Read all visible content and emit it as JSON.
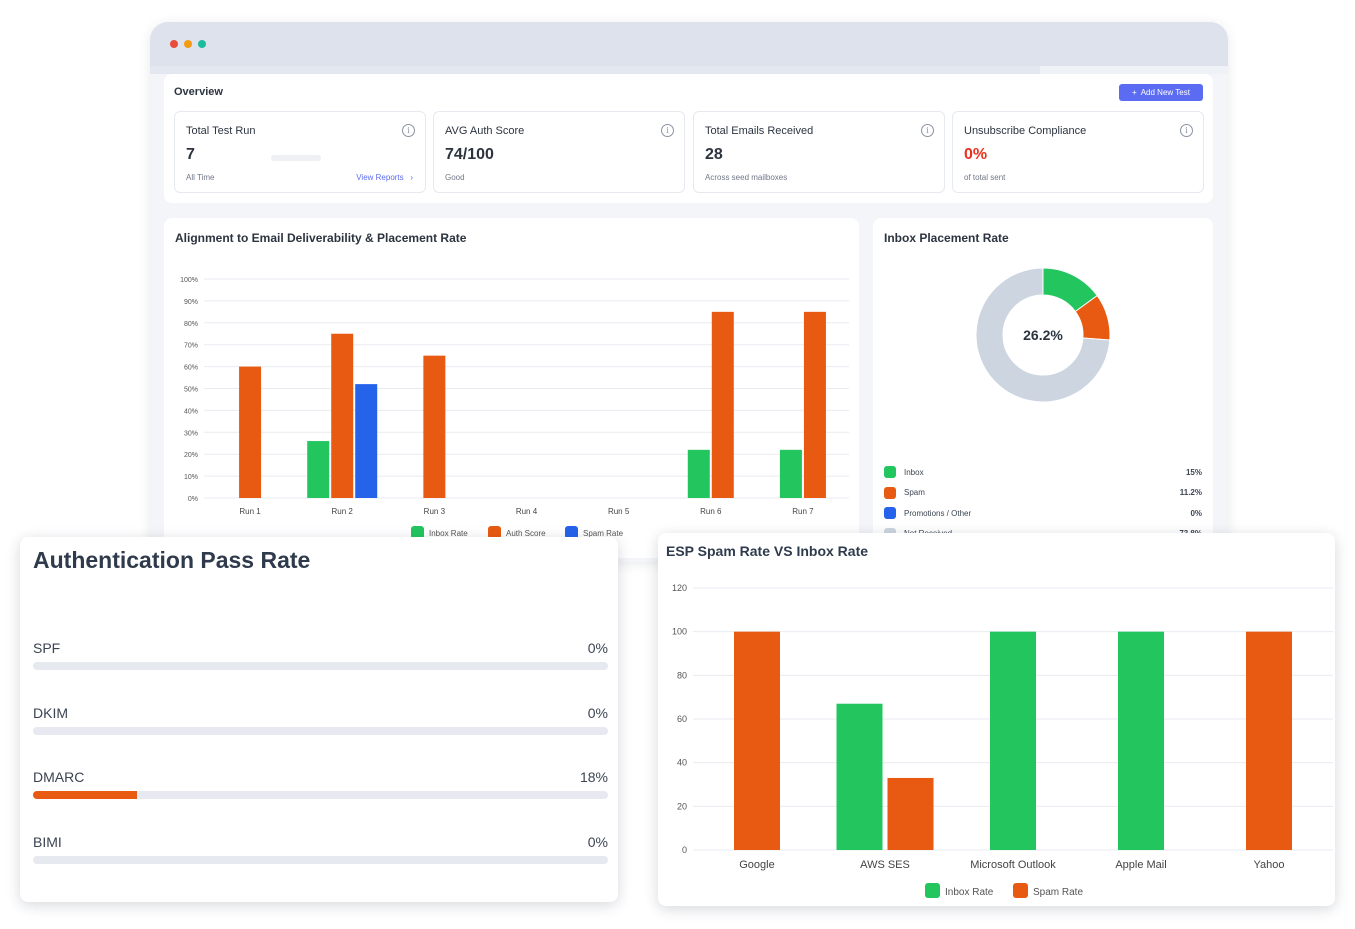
{
  "window": {
    "dot_colors": [
      "#e74c3c",
      "#f39c12",
      "#1abc9c"
    ]
  },
  "overview": {
    "title": "Overview",
    "add_button_label": "Add New Test",
    "stats": [
      {
        "label": "Total Test Run",
        "value": "7",
        "sub": "All Time",
        "link": "View Reports",
        "value_color": "#2c3440"
      },
      {
        "label": "AVG Auth Score",
        "value": "74/100",
        "sub": "Good",
        "value_color": "#2c3440"
      },
      {
        "label": "Total Emails Received",
        "value": "28",
        "sub": "Across seed mailboxes",
        "value_color": "#2c3440"
      },
      {
        "label": "Unsubscribe Compliance",
        "value": "0%",
        "sub": "of total sent",
        "value_color": "#e8321e"
      }
    ]
  },
  "alignment_chart": {
    "title": "Alignment to Email Deliverability & Placement Rate"
  },
  "inbox_placement": {
    "title": "Inbox Placement Rate",
    "center_label": "26.2%",
    "legend": [
      {
        "label": "Inbox",
        "value": "15%",
        "color": "#22c55e"
      },
      {
        "label": "Spam",
        "value": "11.2%",
        "color": "#e85a11"
      },
      {
        "label": "Promotions / Other",
        "value": "0%",
        "color": "#2563eb"
      },
      {
        "label": "Not Received",
        "value": "73.8%",
        "color": "#cdd5e0"
      }
    ]
  },
  "auth_pass_rate": {
    "title": "Authentication Pass Rate",
    "rows": [
      {
        "name": "SPF",
        "percent_label": "0%",
        "value": 0
      },
      {
        "name": "DKIM",
        "percent_label": "0%",
        "value": 0
      },
      {
        "name": "DMARC",
        "percent_label": "18%",
        "value": 18
      },
      {
        "name": "BIMI",
        "percent_label": "0%",
        "value": 0
      }
    ],
    "fill_color": "#e85a11"
  },
  "esp_chart": {
    "title": "ESP Spam Rate VS Inbox Rate"
  },
  "chart_data": [
    {
      "type": "bar",
      "title": "Alignment to Email Deliverability & Placement Rate",
      "categories": [
        "Run 1",
        "Run 2",
        "Run 3",
        "Run 4",
        "Run 5",
        "Run 6",
        "Run 7"
      ],
      "series": [
        {
          "name": "Inbox Rate",
          "color": "#22c55e",
          "values": [
            0,
            26,
            0,
            0,
            0,
            22,
            22
          ]
        },
        {
          "name": "Auth Score",
          "color": "#e85a11",
          "values": [
            60,
            75,
            65,
            0,
            0,
            85,
            85
          ]
        },
        {
          "name": "Spam Rate",
          "color": "#2563eb",
          "values": [
            0,
            52,
            0,
            0,
            0,
            0,
            0
          ]
        }
      ],
      "yticks": [
        "0%",
        "10%",
        "20%",
        "30%",
        "40%",
        "50%",
        "60%",
        "70%",
        "80%",
        "90%",
        "100%"
      ],
      "ylim": [
        0,
        100
      ],
      "grid": true,
      "legend": "bottom"
    },
    {
      "type": "pie",
      "title": "Inbox Placement Rate",
      "labels": [
        "Inbox",
        "Spam",
        "Promotions / Other",
        "Not Received"
      ],
      "values": [
        15,
        11.2,
        0,
        73.8
      ],
      "colors": [
        "#22c55e",
        "#e85a11",
        "#2563eb",
        "#cdd5e0"
      ]
    },
    {
      "type": "bar",
      "title": "ESP Spam Rate VS Inbox Rate",
      "categories": [
        "Google",
        "AWS SES",
        "Microsoft Outlook",
        "Apple Mail",
        "Yahoo"
      ],
      "series": [
        {
          "name": "Inbox Rate",
          "color": "#22c55e",
          "values": [
            0,
            67,
            100,
            100,
            0
          ]
        },
        {
          "name": "Spam Rate",
          "color": "#e85a11",
          "values": [
            100,
            33,
            0,
            0,
            100
          ]
        }
      ],
      "yticks": [
        "0",
        "20",
        "40",
        "60",
        "80",
        "100",
        "120"
      ],
      "ylim": [
        0,
        120
      ],
      "grid": true,
      "legend": "bottom"
    }
  ]
}
